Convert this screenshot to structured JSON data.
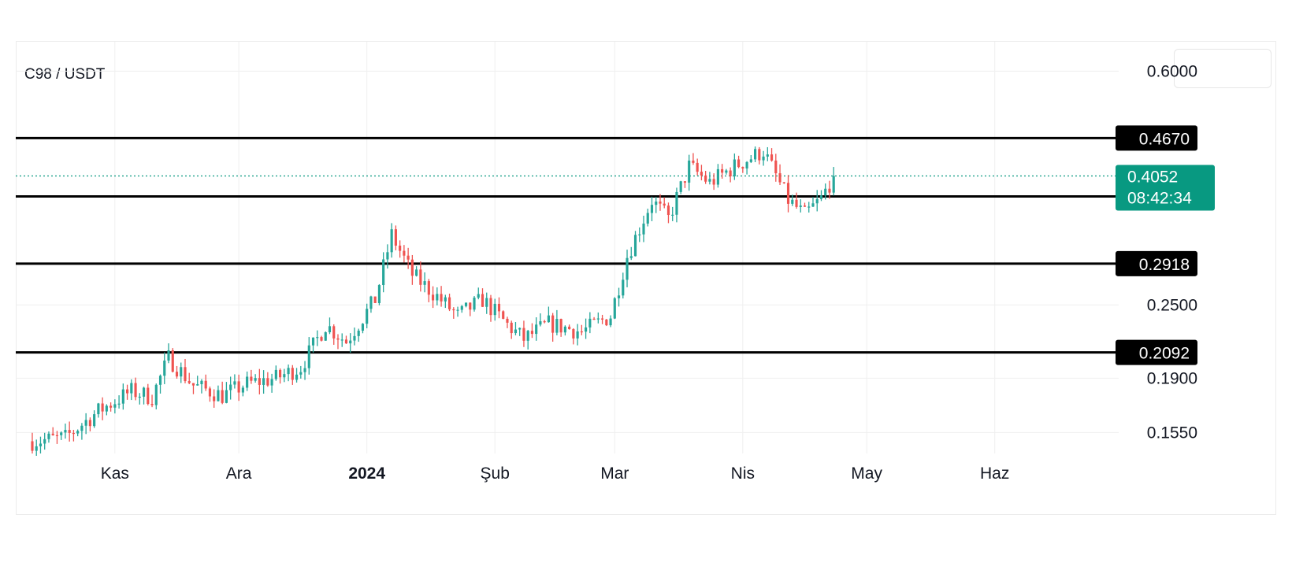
{
  "pair": "C98 / USDT",
  "colors": {
    "up": "#26a69a",
    "down": "#ef5350",
    "level": "#000000",
    "current": "#089981",
    "grid": "#efefef",
    "axis_text": "#131722"
  },
  "chart_data": {
    "type": "candlestick",
    "title": "C98 / USDT",
    "y_scale": "log",
    "ylim": [
      0.145,
      0.66
    ],
    "x_range": [
      "2023-10-08",
      "2024-07-01"
    ],
    "y_ticks": [
      "0.6000",
      "0.2500",
      "0.1900",
      "0.1550"
    ],
    "x_ticks": [
      {
        "label": "Kas",
        "date": "2023-11-01",
        "bold": false
      },
      {
        "label": "Ara",
        "date": "2023-12-01",
        "bold": false
      },
      {
        "label": "2024",
        "date": "2024-01-01",
        "bold": true
      },
      {
        "label": "Şub",
        "date": "2024-02-01",
        "bold": false
      },
      {
        "label": "Mar",
        "date": "2024-03-01",
        "bold": false
      },
      {
        "label": "Nis",
        "date": "2024-04-01",
        "bold": false
      },
      {
        "label": "May",
        "date": "2024-05-01",
        "bold": false
      },
      {
        "label": "Haz",
        "date": "2024-06-01",
        "bold": false
      }
    ],
    "horizontal_levels": [
      {
        "price": 0.467,
        "label": "0.4670"
      },
      {
        "price": 0.3752,
        "label": "0.3752"
      },
      {
        "price": 0.2918,
        "label": "0.2918"
      },
      {
        "price": 0.2092,
        "label": "0.2092"
      }
    ],
    "current_price": {
      "price": 0.4052,
      "label": "0.4052",
      "countdown": "08:42:34"
    },
    "first_candle_date": "2023-10-12",
    "path_anchors": [
      {
        "date": "2023-10-12",
        "close": 0.15
      },
      {
        "date": "2023-10-20",
        "close": 0.152
      },
      {
        "date": "2023-10-28",
        "close": 0.168
      },
      {
        "date": "2023-11-05",
        "close": 0.181
      },
      {
        "date": "2023-11-10",
        "close": 0.177
      },
      {
        "date": "2023-11-14",
        "close": 0.205
      },
      {
        "date": "2023-11-20",
        "close": 0.185
      },
      {
        "date": "2023-11-27",
        "close": 0.178
      },
      {
        "date": "2023-12-03",
        "close": 0.186
      },
      {
        "date": "2023-12-10",
        "close": 0.19
      },
      {
        "date": "2023-12-16",
        "close": 0.198
      },
      {
        "date": "2023-12-22",
        "close": 0.232
      },
      {
        "date": "2023-12-27",
        "close": 0.218
      },
      {
        "date": "2024-01-03",
        "close": 0.255
      },
      {
        "date": "2024-01-07",
        "close": 0.325
      },
      {
        "date": "2024-01-12",
        "close": 0.28
      },
      {
        "date": "2024-01-18",
        "close": 0.258
      },
      {
        "date": "2024-01-23",
        "close": 0.24
      },
      {
        "date": "2024-01-29",
        "close": 0.255
      },
      {
        "date": "2024-02-04",
        "close": 0.232
      },
      {
        "date": "2024-02-08",
        "close": 0.22
      },
      {
        "date": "2024-02-14",
        "close": 0.233
      },
      {
        "date": "2024-02-22",
        "close": 0.226
      },
      {
        "date": "2024-02-29",
        "close": 0.24
      },
      {
        "date": "2024-03-04",
        "close": 0.3
      },
      {
        "date": "2024-03-10",
        "close": 0.37
      },
      {
        "date": "2024-03-14",
        "close": 0.345
      },
      {
        "date": "2024-03-19",
        "close": 0.42
      },
      {
        "date": "2024-03-24",
        "close": 0.395
      },
      {
        "date": "2024-03-30",
        "close": 0.42
      },
      {
        "date": "2024-04-06",
        "close": 0.445
      },
      {
        "date": "2024-04-12",
        "close": 0.37
      },
      {
        "date": "2024-04-16",
        "close": 0.35
      },
      {
        "date": "2024-04-20",
        "close": 0.372
      },
      {
        "date": "2024-04-23",
        "close": 0.4052
      }
    ]
  }
}
